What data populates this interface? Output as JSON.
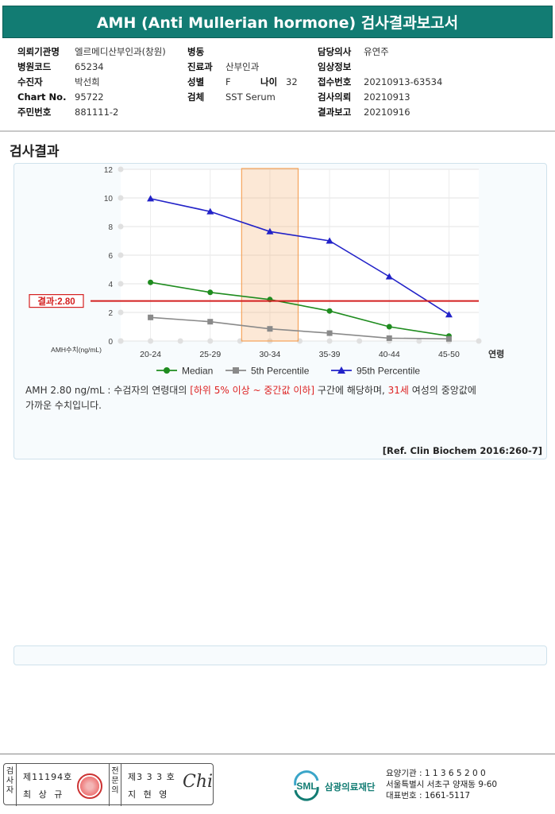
{
  "title": "AMH (Anti Mullerian hormone) 검사결과보고서",
  "info": {
    "col1": [
      {
        "label": "의뢰기관명",
        "value": "엘르메디산부인과(창원)"
      },
      {
        "label": "병원코드",
        "value": "65234"
      },
      {
        "label": "수진자",
        "value": "박선희"
      },
      {
        "label": "Chart No.",
        "value": "95722"
      },
      {
        "label": "주민번호",
        "value": "881111-2"
      }
    ],
    "col2": [
      {
        "label": "병동",
        "value": ""
      },
      {
        "label": "진료과",
        "value": "산부인과"
      },
      {
        "label": "성별",
        "value": "F"
      },
      {
        "label": "검체",
        "value": "SST Serum"
      }
    ],
    "age": {
      "label": "나이",
      "value": "32"
    },
    "col3": [
      {
        "label": "담당의사",
        "value": "유연주"
      },
      {
        "label": "임상정보",
        "value": ""
      },
      {
        "label": "접수번호",
        "value": "20210913-63534"
      },
      {
        "label": "검사의뢰",
        "value": "20210913"
      },
      {
        "label": "결과보고",
        "value": "20210916"
      }
    ]
  },
  "section_title": "검사결과",
  "chart_data": {
    "type": "line",
    "categories": [
      "20-24",
      "25-29",
      "30-34",
      "35-39",
      "40-44",
      "45-50"
    ],
    "series": [
      {
        "name": "Median",
        "values": [
          4.1,
          3.4,
          2.9,
          2.1,
          1.0,
          0.35
        ],
        "color": "#1f8c1f",
        "marker": "circle"
      },
      {
        "name": "5th Percentile",
        "values": [
          1.65,
          1.35,
          0.85,
          0.55,
          0.2,
          0.15
        ],
        "color": "#8a8a8a",
        "marker": "square"
      },
      {
        "name": "95th Percentile",
        "values": [
          9.95,
          9.05,
          7.65,
          7.0,
          4.5,
          1.85
        ],
        "color": "#2222c8",
        "marker": "triangle"
      }
    ],
    "yticks": [
      "0",
      "2",
      "4",
      "6",
      "8",
      "10",
      "12"
    ],
    "ylim": [
      0,
      12
    ],
    "ylabel": "AMH수치(ng/mL)",
    "xlabel": "연령",
    "highlight_category": "30-34",
    "result": {
      "label": "결과:2.80",
      "value": 2.8,
      "color": "#d42020"
    },
    "highlight_color": "#f5a35a"
  },
  "description": {
    "part1": "AMH  2.80 ng/mL : 수검자의 연령대의 ",
    "range": "[하위 5% 이상 ~ 중간값 이하]",
    "part2": "  구간에 해당하며, ",
    "age": "31세",
    "part3": " 여성의 중앙값에",
    "line2": "가까운 수치입니다."
  },
  "reference": "[Ref. Clin Biochem 2016:260-7]",
  "footer": {
    "examiner_label": "검사자",
    "examiner_no": "제11194호",
    "examiner_name": "최 상 규",
    "specialist_label": "전문의",
    "specialist_no": "제3 3 3 호",
    "specialist_name": "지 현 영",
    "signature": "Chi",
    "logo_text": "삼광의료재단",
    "logo_mark": "SML",
    "contact": [
      "요양기관 : 1 1 3 6 5 2 0 0",
      "서울특별시 서초구 양재동 9-60",
      "대표번호 : 1661-5117"
    ]
  }
}
